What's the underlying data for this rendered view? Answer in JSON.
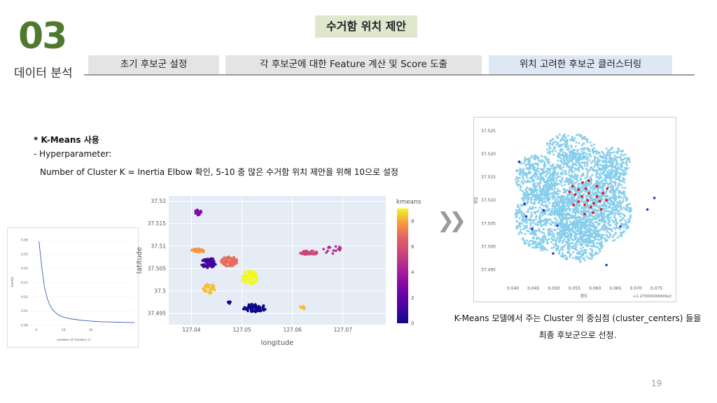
{
  "section": {
    "number": "03",
    "name": "데이터 분석"
  },
  "main_title": "수거함 위치 제안",
  "tabs": [
    {
      "label": "초기 후보군 설정",
      "active": false
    },
    {
      "label": "각 후보군에 대한 Feature 계산 및 Score 도출",
      "active": false
    },
    {
      "label": "위치 고려한 후보군 클러스터링",
      "active": true
    }
  ],
  "notes": {
    "line1": "* K-Means 사용",
    "line2": "- Hyperparameter:",
    "line3": "Number of Cluster K = Inertia Elbow 확인, 5-10 중 많은 수거함 위치 제안을 위해 10으로 설정"
  },
  "caption": {
    "line1": "K-Means 모델에서 주는 Cluster 의 중심점 (cluster_centers) 들을",
    "line2": "최종 후보군으로 선정."
  },
  "page_number": "19",
  "colors": {
    "brand_green": "#4f7a2e",
    "title_bg": "#dfe7cf",
    "active_tab": "#dde8f4",
    "inactive_tab": "#e4e4e4",
    "map_points": "#87ceeb",
    "centers": "#e0191c",
    "extra": "#1f3fd1"
  },
  "chart_data": [
    {
      "type": "line",
      "title": "",
      "xlabel": "number of clusters, k",
      "ylabel": "inertia",
      "x": [
        1,
        2,
        3,
        4,
        5,
        6,
        7,
        8,
        9,
        10,
        12,
        14,
        16,
        18,
        20,
        22,
        24,
        26,
        28,
        30,
        32,
        34,
        36
      ],
      "y": [
        0.059,
        0.041,
        0.027,
        0.019,
        0.014,
        0.011,
        0.009,
        0.0075,
        0.0065,
        0.0058,
        0.0048,
        0.0042,
        0.0037,
        0.0033,
        0.003,
        0.0027,
        0.0025,
        0.0024,
        0.0023,
        0.0022,
        0.0021,
        0.002,
        0.0019
      ],
      "xticks": [
        "0",
        "10",
        "20"
      ],
      "yticks": [
        "0.00",
        "0.01",
        "0.02",
        "0.03",
        "0.04",
        "0.05",
        "0.06"
      ],
      "xlim": [
        -2,
        36
      ],
      "ylim": [
        0,
        0.063
      ]
    },
    {
      "type": "scatter",
      "title": "",
      "xlabel": "longitude",
      "ylabel": "latitude",
      "colorbar_title": "kmeans",
      "colorbar_ticks": [
        "0",
        "2",
        "4",
        "6",
        "8"
      ],
      "xticks": [
        "127.04",
        "127.05",
        "127.06",
        "127.07"
      ],
      "yticks": [
        "37.495",
        "37.5",
        "37.505",
        "37.51",
        "37.515",
        "37.52"
      ],
      "xlim": [
        127.0355,
        127.0785
      ],
      "ylim": [
        37.4925,
        37.5212
      ],
      "clusters": [
        {
          "label": 0,
          "color": "#0d0887",
          "cx": 127.0525,
          "cy": 37.4962,
          "rx": 0.0023,
          "ry": 0.0009,
          "n": 75
        },
        {
          "label": 0,
          "color": "#0d0887",
          "cx": 127.0475,
          "cy": 37.4975,
          "rx": 0.0005,
          "ry": 0.0003,
          "n": 8
        },
        {
          "label": 1,
          "color": "#41049d",
          "cx": 127.0434,
          "cy": 37.5063,
          "rx": 0.0016,
          "ry": 0.0012,
          "n": 80
        },
        {
          "label": 2,
          "color": "#8707a6",
          "cx": 127.0412,
          "cy": 37.5175,
          "rx": 0.0008,
          "ry": 0.0006,
          "n": 22
        },
        {
          "label": 3,
          "color": "#b12a90",
          "cx": 127.068,
          "cy": 37.5092,
          "rx": 0.002,
          "ry": 0.0009,
          "n": 14
        },
        {
          "label": 4,
          "color": "#cc4778",
          "cx": 127.0632,
          "cy": 37.5085,
          "rx": 0.0018,
          "ry": 0.0005,
          "n": 40
        },
        {
          "label": 5,
          "color": "#e66c5c",
          "cx": 127.0475,
          "cy": 37.5066,
          "rx": 0.0017,
          "ry": 0.0011,
          "n": 85
        },
        {
          "label": 6,
          "color": "#f89441",
          "cx": 127.0413,
          "cy": 37.509,
          "rx": 0.0013,
          "ry": 0.0005,
          "n": 30
        },
        {
          "label": 7,
          "color": "#fbbe2b",
          "cx": 127.0435,
          "cy": 37.5005,
          "rx": 0.0012,
          "ry": 0.0011,
          "n": 40
        },
        {
          "label": 7,
          "color": "#fbbe2b",
          "cx": 127.062,
          "cy": 37.4963,
          "rx": 0.0006,
          "ry": 0.0004,
          "n": 8
        },
        {
          "label": 8,
          "color": "#f0f921",
          "cx": 127.0515,
          "cy": 37.503,
          "rx": 0.0016,
          "ry": 0.0016,
          "n": 90
        }
      ]
    },
    {
      "type": "scatter",
      "title": "",
      "xlabel": "경도",
      "ylabel": "위도",
      "x_offset_label": "+1.27000000000e2",
      "xticks": [
        "0.040",
        "0.045",
        "0.050",
        "0.055",
        "0.060",
        "0.065",
        "0.070",
        "0.075"
      ],
      "yticks": [
        "37.495",
        "37.500",
        "37.505",
        "37.510",
        "37.515",
        "37.520",
        "37.525"
      ],
      "xlim": [
        0.0375,
        0.0785
      ],
      "ylim": [
        37.4928,
        37.5268
      ],
      "centers": [
        [
          0.0568,
          37.5108
        ],
        [
          0.0575,
          37.509
        ],
        [
          0.0582,
          37.51
        ],
        [
          0.059,
          37.5085
        ],
        [
          0.0597,
          37.5093
        ],
        [
          0.056,
          37.5097
        ],
        [
          0.0552,
          37.5112
        ],
        [
          0.0605,
          37.5108
        ],
        [
          0.0612,
          37.5098
        ],
        [
          0.0585,
          37.5115
        ],
        [
          0.0578,
          37.5125
        ],
        [
          0.056,
          37.5123
        ],
        [
          0.062,
          37.5115
        ],
        [
          0.0628,
          37.51
        ],
        [
          0.0595,
          37.5073
        ],
        [
          0.0575,
          37.507
        ],
        [
          0.0545,
          37.513
        ],
        [
          0.0538,
          37.5118
        ],
        [
          0.0605,
          37.513
        ],
        [
          0.063,
          37.5125
        ],
        [
          0.057,
          37.5138
        ],
        [
          0.0548,
          37.509
        ],
        [
          0.0615,
          37.508
        ],
        [
          0.0585,
          37.5142
        ]
      ],
      "others": [
        [
          0.0415,
          37.5183
        ],
        [
          0.0432,
          37.5065
        ],
        [
          0.0428,
          37.5092
        ],
        [
          0.0447,
          37.5038
        ],
        [
          0.0475,
          37.5078
        ],
        [
          0.0508,
          37.5045
        ],
        [
          0.0498,
          37.4985
        ],
        [
          0.0628,
          37.496
        ],
        [
          0.0662,
          37.5043
        ],
        [
          0.0745,
          37.5105
        ],
        [
          0.0728,
          37.508
        ]
      ]
    }
  ]
}
